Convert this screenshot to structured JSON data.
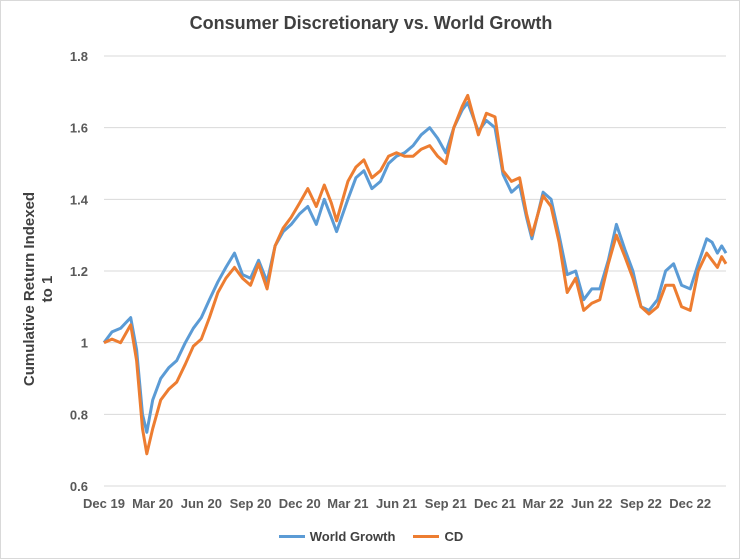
{
  "chart_data": {
    "type": "line",
    "title": "Consumer Discretionary vs. World Growth",
    "xlabel": "",
    "ylabel": "Cumulative Return Indexed to 1",
    "ylim": [
      0.6,
      1.8
    ],
    "yticks": [
      0.6,
      0.8,
      1,
      1.2,
      1.4,
      1.6,
      1.8
    ],
    "xtick_labels": [
      "Dec 19",
      "Mar 20",
      "Jun 20",
      "Sep 20",
      "Dec 20",
      "Mar 21",
      "Jun 21",
      "Sep 21",
      "Dec 21",
      "Mar 22",
      "Jun 22",
      "Sep 22",
      "Dec 22"
    ],
    "xtick_dates": [
      "2019-12-31",
      "2020-03-31",
      "2020-06-30",
      "2020-09-30",
      "2020-12-31",
      "2021-03-31",
      "2021-06-30",
      "2021-09-30",
      "2021-12-31",
      "2022-03-31",
      "2022-06-30",
      "2022-09-30",
      "2022-12-31"
    ],
    "xlim": [
      "2019-12-31",
      "2023-03-08"
    ],
    "grid": "horizontal",
    "legend_position": "bottom",
    "x": [
      "2019-12-31",
      "2020-01-15",
      "2020-01-31",
      "2020-02-19",
      "2020-03-01",
      "2020-03-12",
      "2020-03-20",
      "2020-03-31",
      "2020-04-15",
      "2020-04-30",
      "2020-05-15",
      "2020-05-31",
      "2020-06-15",
      "2020-06-30",
      "2020-07-15",
      "2020-07-31",
      "2020-08-15",
      "2020-08-31",
      "2020-09-15",
      "2020-09-30",
      "2020-10-15",
      "2020-10-31",
      "2020-11-15",
      "2020-11-30",
      "2020-12-15",
      "2020-12-31",
      "2021-01-15",
      "2021-01-31",
      "2021-02-15",
      "2021-02-28",
      "2021-03-10",
      "2021-03-31",
      "2021-04-15",
      "2021-04-30",
      "2021-05-15",
      "2021-05-31",
      "2021-06-15",
      "2021-06-30",
      "2021-07-15",
      "2021-07-31",
      "2021-08-15",
      "2021-08-31",
      "2021-09-15",
      "2021-09-30",
      "2021-10-15",
      "2021-10-31",
      "2021-11-10",
      "2021-11-30",
      "2021-12-15",
      "2021-12-31",
      "2022-01-15",
      "2022-01-31",
      "2022-02-15",
      "2022-02-28",
      "2022-03-10",
      "2022-03-31",
      "2022-04-15",
      "2022-04-30",
      "2022-05-15",
      "2022-05-31",
      "2022-06-15",
      "2022-06-30",
      "2022-07-15",
      "2022-07-31",
      "2022-08-15",
      "2022-08-31",
      "2022-09-15",
      "2022-09-30",
      "2022-10-15",
      "2022-10-31",
      "2022-11-15",
      "2022-11-30",
      "2022-12-15",
      "2022-12-31",
      "2023-01-15",
      "2023-01-31",
      "2023-02-10",
      "2023-02-20",
      "2023-02-28",
      "2023-03-08"
    ],
    "series": [
      {
        "name": "World Growth",
        "color": "#5b9bd5",
        "values": [
          1.0,
          1.03,
          1.04,
          1.07,
          0.98,
          0.8,
          0.75,
          0.84,
          0.9,
          0.93,
          0.95,
          1.0,
          1.04,
          1.07,
          1.12,
          1.17,
          1.21,
          1.25,
          1.19,
          1.18,
          1.23,
          1.17,
          1.27,
          1.31,
          1.33,
          1.36,
          1.38,
          1.33,
          1.4,
          1.35,
          1.31,
          1.4,
          1.46,
          1.48,
          1.43,
          1.45,
          1.5,
          1.52,
          1.53,
          1.55,
          1.58,
          1.6,
          1.57,
          1.53,
          1.6,
          1.65,
          1.67,
          1.59,
          1.62,
          1.6,
          1.47,
          1.42,
          1.44,
          1.35,
          1.29,
          1.42,
          1.4,
          1.3,
          1.19,
          1.2,
          1.12,
          1.15,
          1.15,
          1.23,
          1.33,
          1.26,
          1.2,
          1.1,
          1.09,
          1.12,
          1.2,
          1.22,
          1.16,
          1.15,
          1.22,
          1.29,
          1.28,
          1.25,
          1.27,
          1.25
        ]
      },
      {
        "name": "CD",
        "color": "#ed7d31",
        "values": [
          1.0,
          1.01,
          1.0,
          1.05,
          0.95,
          0.76,
          0.69,
          0.76,
          0.84,
          0.87,
          0.89,
          0.94,
          0.99,
          1.01,
          1.07,
          1.14,
          1.18,
          1.21,
          1.18,
          1.16,
          1.22,
          1.15,
          1.27,
          1.32,
          1.35,
          1.39,
          1.43,
          1.38,
          1.44,
          1.39,
          1.34,
          1.45,
          1.49,
          1.51,
          1.46,
          1.48,
          1.52,
          1.53,
          1.52,
          1.52,
          1.54,
          1.55,
          1.52,
          1.5,
          1.6,
          1.66,
          1.69,
          1.58,
          1.64,
          1.63,
          1.48,
          1.45,
          1.46,
          1.36,
          1.3,
          1.41,
          1.38,
          1.28,
          1.14,
          1.18,
          1.09,
          1.11,
          1.12,
          1.22,
          1.3,
          1.24,
          1.18,
          1.1,
          1.08,
          1.1,
          1.16,
          1.16,
          1.1,
          1.09,
          1.2,
          1.25,
          1.23,
          1.21,
          1.24,
          1.22
        ]
      }
    ]
  }
}
